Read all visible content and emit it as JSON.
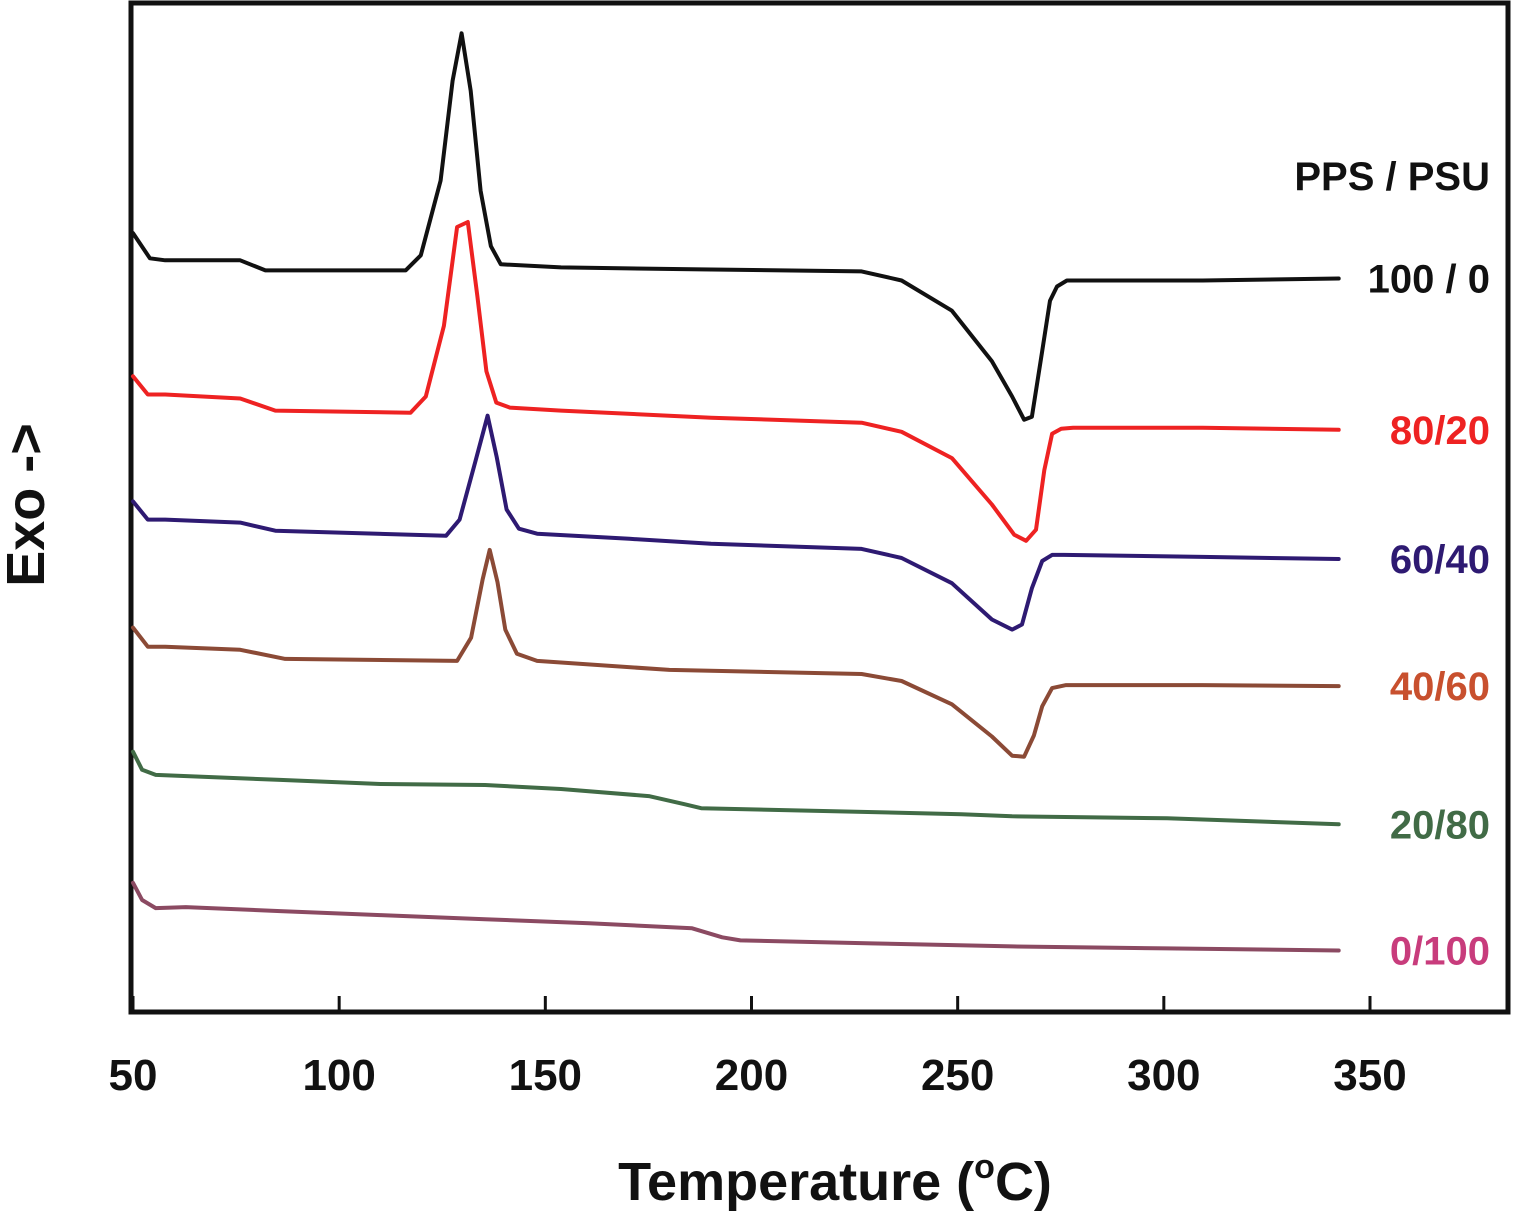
{
  "chart_data": {
    "type": "line",
    "title": "",
    "xlabel": "Temperature (°C)",
    "xlabel_main": "Temperature (",
    "xlabel_sup": "o",
    "xlabel_end": "C)",
    "ylabel": "Exo ->",
    "xlim": [
      50,
      384
    ],
    "ylim": [
      0,
      100
    ],
    "y_units": "arbitrary (heat flow, exo up, curves vertically offset)",
    "x_ticks": [
      50,
      100,
      150,
      200,
      250,
      300,
      350
    ],
    "x_tick_labels": [
      "50",
      "100",
      "150",
      "200",
      "250",
      "300",
      "350"
    ],
    "grid": false,
    "legend_title": "PPS / PSU",
    "legend_placement": "right, labels at curve ends",
    "series": [
      {
        "name": "100 / 0",
        "color": "#111111",
        "x": [
          50,
          54.1,
          57.8,
          76,
          82.1,
          116.1,
          119.8,
          124.6,
          127.5,
          129.7,
          131.9,
          134.3,
          136.8,
          139.2,
          153.8,
          187.8,
          226.7,
          236.4,
          248.6,
          258.3,
          263.2,
          266.1,
          268.0,
          270.5,
          272.4,
          274.1,
          276.5,
          309.4,
          342.4
        ],
        "y": [
          77.2,
          74.7,
          74.5,
          74.5,
          73.5,
          73.5,
          75.0,
          82.4,
          92.3,
          97.0,
          91.3,
          81.4,
          75.9,
          74.1,
          73.8,
          73.6,
          73.4,
          72.5,
          69.5,
          64.5,
          61.0,
          58.7,
          59.0,
          65.5,
          70.5,
          71.9,
          72.5,
          72.5,
          72.7
        ]
      },
      {
        "name": "80/20",
        "color": "#ee2222",
        "x": [
          50,
          53.6,
          57.8,
          76,
          84.5,
          117.3,
          121.0,
          125.4,
          128.6,
          131.2,
          133.5,
          135.7,
          138.1,
          141.4,
          153.8,
          190.2,
          226.7,
          236.4,
          248.6,
          258.3,
          263.7,
          266.6,
          269.0,
          271.0,
          272.9,
          275.1,
          278.0,
          309.4,
          342.4
        ],
        "y": [
          63.0,
          61.2,
          61.2,
          60.8,
          59.6,
          59.4,
          61.0,
          68.0,
          77.8,
          78.3,
          71.0,
          63.5,
          60.4,
          59.9,
          59.6,
          58.9,
          58.4,
          57.5,
          54.9,
          50.3,
          47.3,
          46.7,
          47.8,
          53.7,
          57.3,
          57.8,
          57.9,
          57.9,
          57.7
        ]
      },
      {
        "name": "60/40",
        "color": "#2e1a72",
        "x": [
          50,
          53.6,
          57.8,
          76,
          84.5,
          125.9,
          129.2,
          133.0,
          136.0,
          138.2,
          140.6,
          143.6,
          148.0,
          170.4,
          190.2,
          226.7,
          236.4,
          248.6,
          258.3,
          263.2,
          265.6,
          268.0,
          270.5,
          272.9,
          275.8,
          309.4,
          342.4
        ],
        "y": [
          50.6,
          48.8,
          48.8,
          48.5,
          47.7,
          47.2,
          48.8,
          54.5,
          59.1,
          55.0,
          49.8,
          47.9,
          47.4,
          46.9,
          46.4,
          45.9,
          45.0,
          42.5,
          38.9,
          37.9,
          38.4,
          42.0,
          44.7,
          45.3,
          45.3,
          45.1,
          44.9
        ]
      },
      {
        "name": "40/60",
        "color": "#8b4a36",
        "x": [
          50,
          53.6,
          57.8,
          76,
          86.9,
          128.6,
          132.0,
          134.8,
          136.5,
          138.4,
          140.3,
          143.1,
          148.0,
          180.1,
          226.7,
          236.4,
          248.6,
          258.3,
          263.2,
          266.1,
          268.5,
          270.5,
          272.9,
          276.3,
          309.4,
          342.4
        ],
        "y": [
          38.1,
          36.2,
          36.2,
          35.9,
          35.0,
          34.8,
          37.1,
          42.9,
          45.8,
          42.6,
          37.9,
          35.5,
          34.8,
          33.9,
          33.5,
          32.8,
          30.5,
          27.3,
          25.4,
          25.3,
          27.4,
          30.3,
          32.1,
          32.4,
          32.4,
          32.3
        ]
      },
      {
        "name": "20/80",
        "color": "#416b46",
        "x": [
          50,
          52.2,
          55.5,
          85.7,
          110.0,
          135.4,
          153.8,
          175.1,
          183.6,
          187.8,
          250.9,
          263.2,
          300.8,
          342.4
        ],
        "y": [
          25.8,
          24.0,
          23.5,
          23.0,
          22.6,
          22.5,
          22.1,
          21.4,
          20.6,
          20.2,
          19.6,
          19.4,
          19.2,
          18.6
        ]
      },
      {
        "name": "0/100",
        "color": "#8b4a62",
        "x": [
          50,
          52.2,
          55.5,
          62.8,
          85.7,
          110.0,
          135.4,
          160.6,
          185.6,
          192.9,
          197.3,
          229.1,
          263.2,
          300.8,
          342.4
        ],
        "y": [
          12.8,
          11.1,
          10.3,
          10.4,
          10.0,
          9.6,
          9.2,
          8.8,
          8.3,
          7.4,
          7.1,
          6.8,
          6.5,
          6.3,
          6.1
        ]
      }
    ]
  }
}
